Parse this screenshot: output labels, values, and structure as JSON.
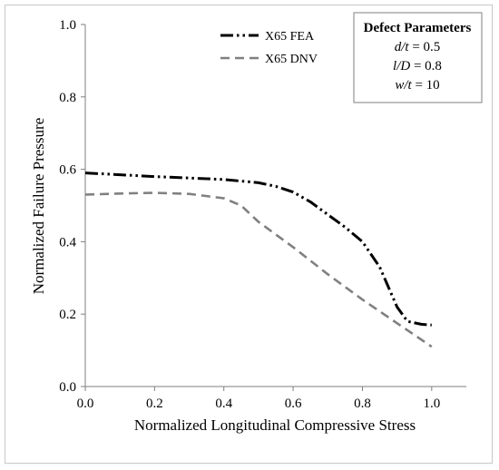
{
  "chart_data": {
    "type": "line",
    "xlabel": "Normalized Longitudinal Compressive Stress",
    "ylabel": "Normalized Failure Pressure",
    "xlim": [
      0.0,
      1.1
    ],
    "ylim": [
      0.0,
      1.0
    ],
    "xticks": [
      0.0,
      0.2,
      0.4,
      0.6,
      0.8,
      1.0
    ],
    "xtick_labels": [
      "0.0",
      "0.2",
      "0.4",
      "0.6",
      "0.8",
      "1.0"
    ],
    "yticks": [
      0.0,
      0.2,
      0.4,
      0.6,
      0.8,
      1.0
    ],
    "ytick_labels": [
      "0.0",
      "0.2",
      "0.4",
      "0.6",
      "0.8",
      "1.0"
    ],
    "grid": false,
    "legend_position": "top-center",
    "series": [
      {
        "name": "X65 FEA",
        "color": "#000000",
        "line_style": "dash-dot-dot",
        "x": [
          0.0,
          0.1,
          0.2,
          0.3,
          0.4,
          0.5,
          0.55,
          0.6,
          0.65,
          0.7,
          0.75,
          0.8,
          0.85,
          0.9,
          0.93,
          0.97,
          1.0
        ],
        "y": [
          0.59,
          0.585,
          0.58,
          0.576,
          0.572,
          0.563,
          0.553,
          0.537,
          0.51,
          0.475,
          0.44,
          0.4,
          0.33,
          0.22,
          0.18,
          0.172,
          0.17
        ]
      },
      {
        "name": "X65 DNV",
        "color": "#808080",
        "line_style": "dashed",
        "x": [
          0.0,
          0.1,
          0.2,
          0.3,
          0.4,
          0.45,
          0.5,
          0.6,
          0.7,
          0.8,
          0.9,
          1.0
        ],
        "y": [
          0.53,
          0.533,
          0.535,
          0.532,
          0.52,
          0.5,
          0.455,
          0.385,
          0.31,
          0.24,
          0.175,
          0.11
        ]
      }
    ],
    "annotation_box": {
      "title": "Defect Parameters",
      "lines": [
        {
          "var": "d/t",
          "value": "0.5"
        },
        {
          "var": "l/D",
          "value": "0.8"
        },
        {
          "var": "w/t",
          "value": "10"
        }
      ]
    }
  }
}
